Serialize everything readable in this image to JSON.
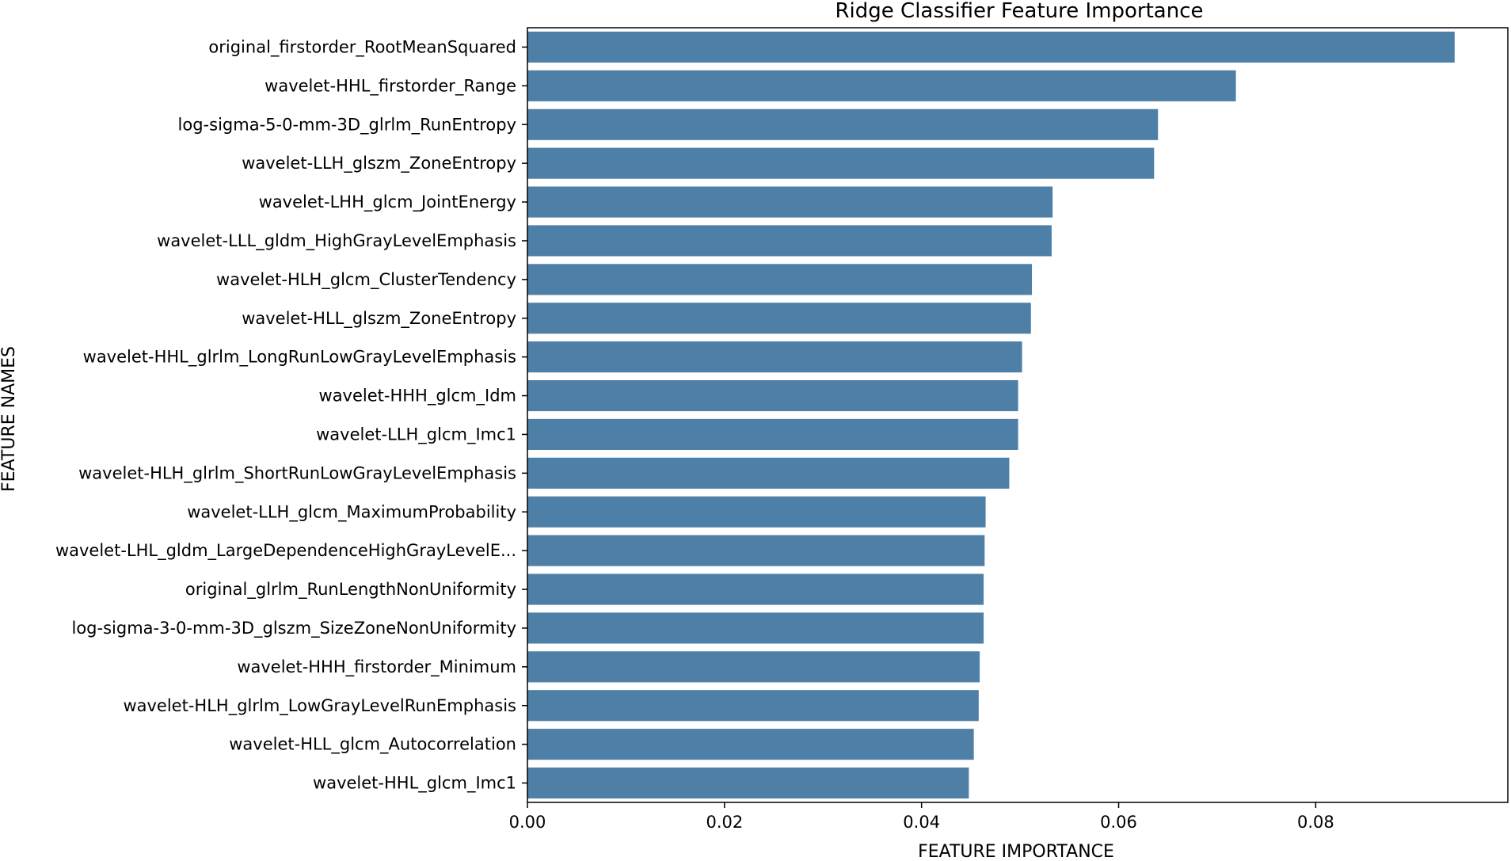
{
  "chart_data": {
    "type": "bar",
    "orientation": "horizontal",
    "title": "Ridge Classifier Feature Importance",
    "xlabel": "FEATURE IMPORTANCE",
    "ylabel": "FEATURE NAMES",
    "xlim": [
      0,
      0.0995
    ],
    "xticks": [
      "0.00",
      "0.02",
      "0.04",
      "0.06",
      "0.08"
    ],
    "xtick_values": [
      0,
      0.02,
      0.04,
      0.06,
      0.08
    ],
    "bar_color": "#4e7fa6",
    "grid": false,
    "categories": [
      "original_firstorder_RootMeanSquared",
      "wavelet-HHL_firstorder_Range",
      "log-sigma-5-0-mm-3D_glrlm_RunEntropy",
      "wavelet-LLH_glszm_ZoneEntropy",
      "wavelet-LHH_glcm_JointEnergy",
      "wavelet-LLL_gldm_HighGrayLevelEmphasis",
      "wavelet-HLH_glcm_ClusterTendency",
      "wavelet-HLL_glszm_ZoneEntropy",
      "wavelet-HHL_glrlm_LongRunLowGrayLevelEmphasis",
      "wavelet-HHH_glcm_Idm",
      "wavelet-LLH_glcm_Imc1",
      "wavelet-HLH_glrlm_ShortRunLowGrayLevelEmphasis",
      "wavelet-LLH_glcm_MaximumProbability",
      "wavelet-LHL_gldm_LargeDependenceHighGrayLevelE...",
      "original_glrlm_RunLengthNonUniformity",
      "log-sigma-3-0-mm-3D_glszm_SizeZoneNonUniformity",
      "wavelet-HHH_firstorder_Minimum",
      "wavelet-HLH_glrlm_LowGrayLevelRunEmphasis",
      "wavelet-HLL_glcm_Autocorrelation",
      "wavelet-HHL_glcm_Imc1"
    ],
    "values": [
      0.0941,
      0.0719,
      0.064,
      0.0636,
      0.0533,
      0.0532,
      0.0512,
      0.0511,
      0.0502,
      0.0498,
      0.0498,
      0.0489,
      0.0465,
      0.0464,
      0.0463,
      0.0463,
      0.0459,
      0.0458,
      0.0453,
      0.0448
    ]
  }
}
